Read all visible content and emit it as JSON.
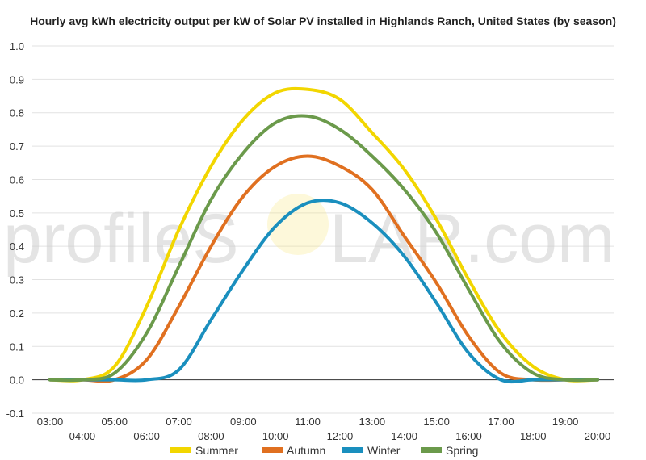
{
  "chart_data": {
    "type": "line",
    "title": "Hourly avg kWh electricity output per kW of Solar PV installed in Highlands Ranch, United States (by season)",
    "xlabel": "",
    "ylabel": "",
    "x": [
      "03:00",
      "04:00",
      "05:00",
      "06:00",
      "07:00",
      "08:00",
      "09:00",
      "10:00",
      "11:00",
      "12:00",
      "13:00",
      "14:00",
      "15:00",
      "16:00",
      "17:00",
      "18:00",
      "19:00",
      "20:00"
    ],
    "ylim": [
      -0.1,
      1.0
    ],
    "yticks": [
      "-0.1",
      "0.0",
      "0.1",
      "0.2",
      "0.3",
      "0.4",
      "0.5",
      "0.6",
      "0.7",
      "0.8",
      "0.9",
      "1.0"
    ],
    "grid": true,
    "legend_position": "bottom",
    "series": [
      {
        "name": "Summer",
        "color": "#f2d600",
        "values": [
          0.0,
          0.0,
          0.04,
          0.22,
          0.45,
          0.64,
          0.78,
          0.86,
          0.87,
          0.84,
          0.74,
          0.63,
          0.48,
          0.3,
          0.14,
          0.04,
          0.0,
          0.0
        ]
      },
      {
        "name": "Autumn",
        "color": "#e07020",
        "values": [
          0.0,
          0.0,
          0.0,
          0.06,
          0.22,
          0.4,
          0.55,
          0.64,
          0.67,
          0.64,
          0.57,
          0.43,
          0.29,
          0.13,
          0.02,
          0.0,
          0.0,
          0.0
        ]
      },
      {
        "name": "Winter",
        "color": "#1a8fbe",
        "values": [
          0.0,
          0.0,
          0.0,
          0.0,
          0.03,
          0.18,
          0.33,
          0.46,
          0.53,
          0.53,
          0.47,
          0.37,
          0.23,
          0.08,
          0.0,
          0.0,
          0.0,
          0.0
        ]
      },
      {
        "name": "Spring",
        "color": "#6b9a4b",
        "values": [
          0.0,
          0.0,
          0.02,
          0.14,
          0.34,
          0.54,
          0.68,
          0.77,
          0.79,
          0.75,
          0.67,
          0.57,
          0.44,
          0.27,
          0.11,
          0.02,
          0.0,
          0.0
        ]
      }
    ]
  },
  "watermark": {
    "text_left": "profileS",
    "text_right": "LAR.com"
  }
}
